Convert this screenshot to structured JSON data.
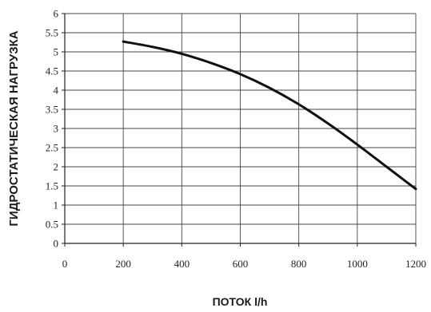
{
  "chart_data": {
    "type": "line",
    "title": "",
    "xlabel": "ПОТОК l/h",
    "ylabel": "ГИДРОСТАТИЧЕСКАЯ НАГРУЗКА",
    "xlim": [
      0,
      1200
    ],
    "ylim": [
      0,
      6
    ],
    "x_ticks": [
      "0",
      "200",
      "400",
      "600",
      "800",
      "1000",
      "1200"
    ],
    "y_ticks": [
      "0",
      "0.5",
      "1",
      "1.5",
      "2",
      "2.5",
      "3",
      "3.5",
      "4",
      "4.5",
      "5",
      "5.5",
      "6"
    ],
    "grid": true,
    "legend": "none",
    "line_color": "#111111",
    "grid_color": "#444444",
    "series": [
      {
        "x": [
          200,
          300,
          400,
          500,
          600,
          700,
          800,
          900,
          1000,
          1100,
          1200
        ],
        "y": [
          5.27,
          5.13,
          4.95,
          4.71,
          4.42,
          4.06,
          3.63,
          3.13,
          2.58,
          2.0,
          1.42
        ]
      }
    ]
  }
}
